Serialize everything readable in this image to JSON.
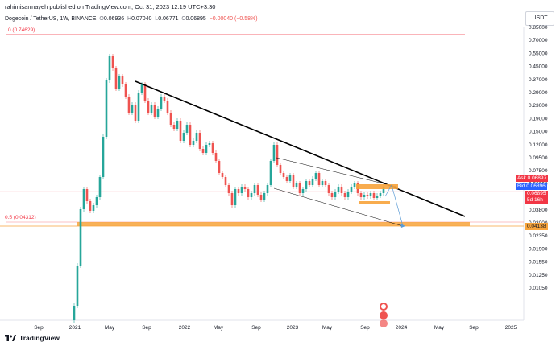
{
  "header": {
    "published": "rahimisarmayeh published on TradingView.com, Oct 31, 2023 12:19 UTC+3:30",
    "symbol": "Dogecoin / TetherUS, 1W, BINANCE",
    "ohlc": {
      "o_label": "O",
      "o": "0.06936",
      "h_label": "H",
      "h": "0.07040",
      "l_label": "L",
      "l": "0.06771",
      "c_label": "C",
      "c": "0.06895",
      "change": "−0.00040 (−0.58%)"
    },
    "currency": "USDT"
  },
  "y_axis": {
    "ticks": [
      "0.85000",
      "0.70000",
      "0.55000",
      "0.45000",
      "0.37000",
      "0.29000",
      "0.23000",
      "0.19000",
      "0.15000",
      "0.12000",
      "0.09500",
      "0.07500",
      "0.06000",
      "0.04800",
      "0.03800",
      "0.03000",
      "0.02350",
      "0.01900",
      "0.01550",
      "0.01250",
      "0.01050"
    ]
  },
  "x_axis": {
    "ticks": [
      "Sep",
      "2021",
      "May",
      "Sep",
      "2022",
      "May",
      "Sep",
      "2023",
      "May",
      "Sep",
      "2024",
      "May",
      "Sep",
      "2025"
    ]
  },
  "fib_levels": [
    {
      "label": "0 (0.74629)"
    },
    {
      "label": "0.5 (0.04312)"
    }
  ],
  "price_tags": {
    "ask_label": "Ask",
    "ask": "0.06897",
    "bid_label": "Bid",
    "bid": "0.06896",
    "last": "0.06895",
    "countdown": "5d 16h",
    "fib_price": "0.04138"
  },
  "colors": {
    "up": "#26a69a",
    "down": "#ef5350",
    "fib": "#f23645",
    "zone": "#f7a33b",
    "trend": "#000000"
  },
  "footer": {
    "brand": "TradingView"
  }
}
